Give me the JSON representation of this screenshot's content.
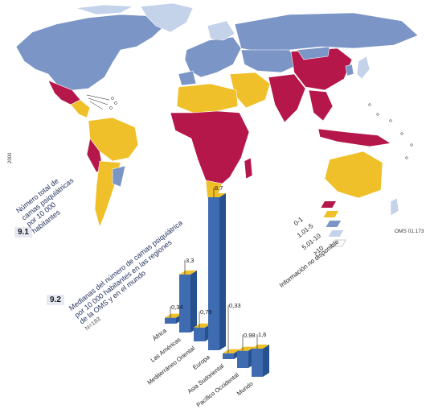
{
  "figure1": {
    "number": "9.1",
    "title_lines": [
      "Número total de",
      "camas psiquiátricas",
      "por 10 000",
      "habitantes"
    ],
    "legend": [
      {
        "label": "0-1",
        "color": "#b5174a"
      },
      {
        "label": "1.01-5",
        "color": "#f0c02a"
      },
      {
        "label": "5.01-10",
        "color": "#7b95c7"
      },
      {
        "label": ">10",
        "color": "#c4d2ea"
      },
      {
        "label": "Información no disponible",
        "color": "#ffffff"
      }
    ],
    "source": "OMS 01.173",
    "margin_note": "2000"
  },
  "figure2": {
    "number": "9.2",
    "title_lines": [
      "Medianas del número de camas psiquiátrica",
      "por 10 000 habitantes en las regiones",
      "de la OMS y en el mundo"
    ],
    "subtitle": "N=183"
  },
  "chart_data": {
    "type": "bar",
    "categories": [
      "África",
      "Las Américas",
      "Mediterráneo Oriental",
      "Europa",
      "Asia Sudoriental",
      "Pacífico Occidental",
      "Mundo"
    ],
    "values": [
      0.34,
      3.3,
      0.79,
      8.7,
      0.33,
      0.98,
      1.6
    ],
    "value_labels": [
      "0,34",
      "3,3",
      "0,79",
      "8,7",
      "0,33",
      "0,98",
      "1,6"
    ],
    "ylim": [
      0,
      8.7
    ],
    "bar_color": "#3f6bb0",
    "cap_color": "#f0c02a"
  },
  "colors": {
    "low": "#b5174a",
    "mid": "#f0c02a",
    "high": "#7b95c7",
    "very_high": "#c4d2ea",
    "ocean": "#ffffff"
  }
}
